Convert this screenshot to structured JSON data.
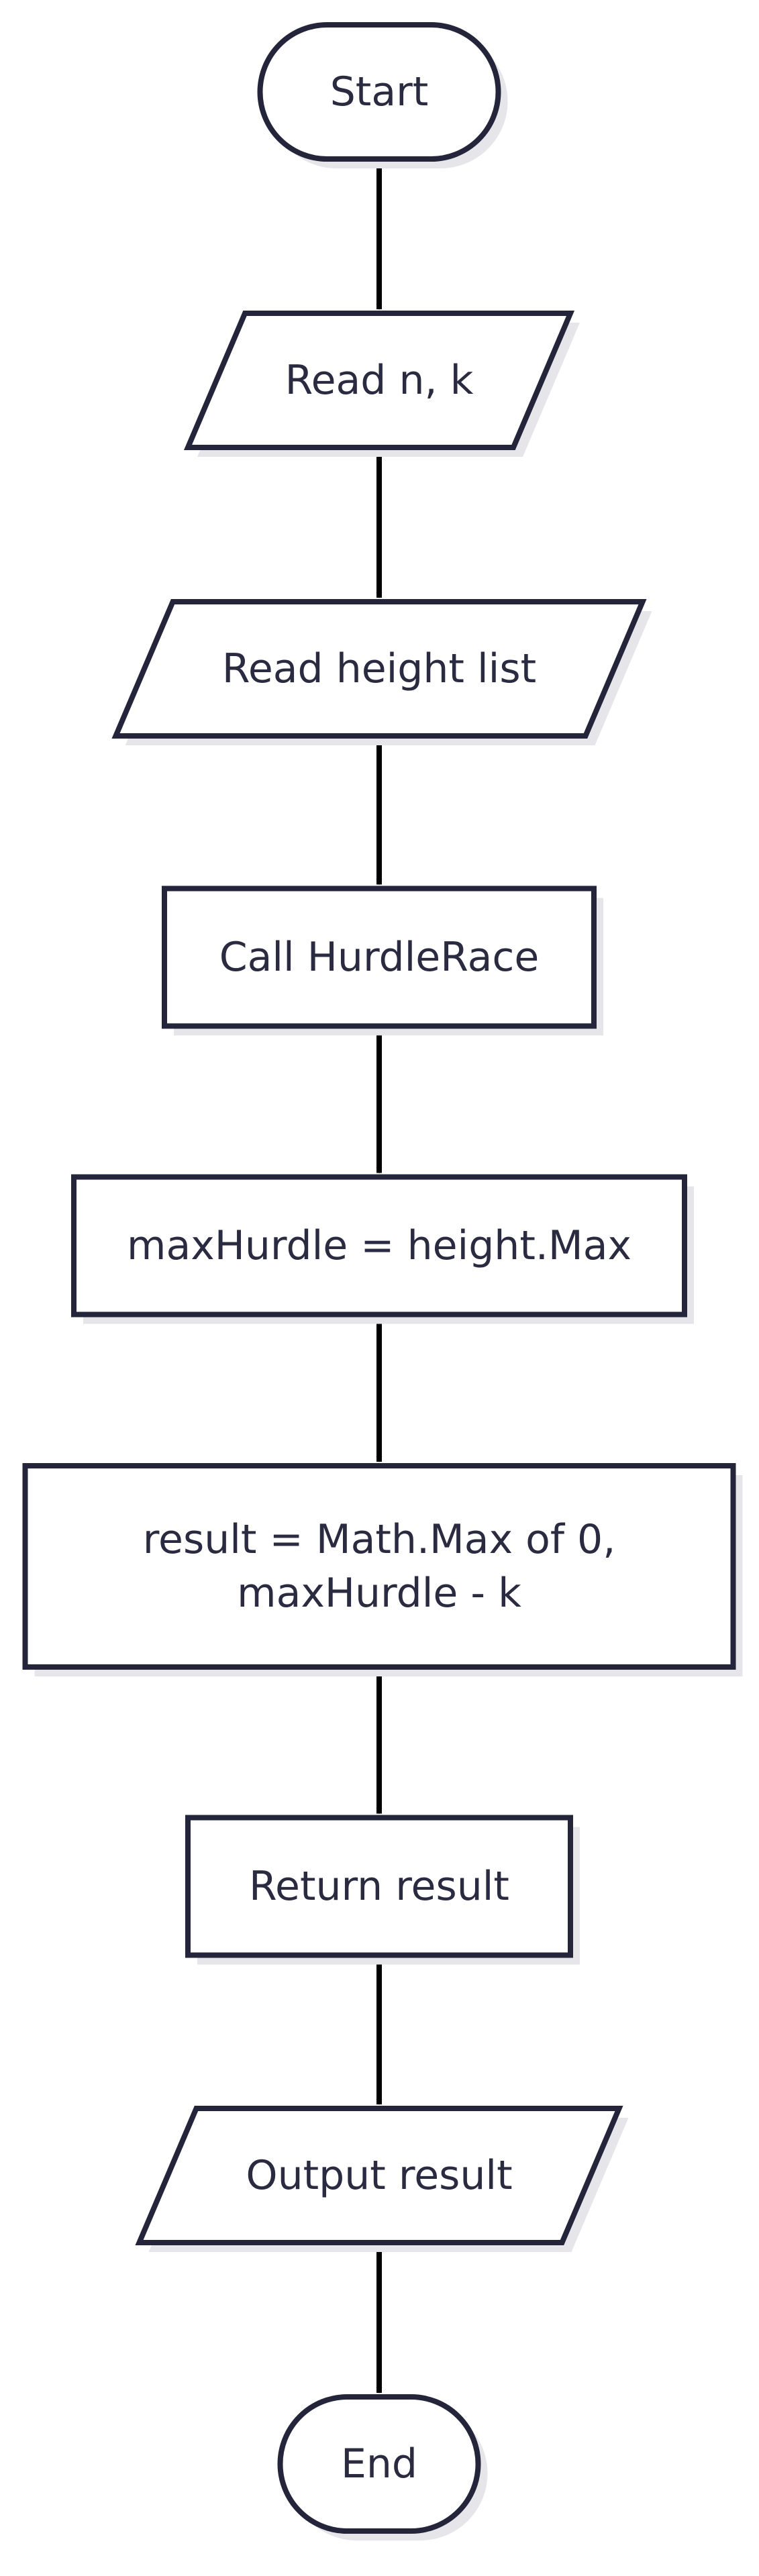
{
  "diagram": {
    "type": "flowchart",
    "colors": {
      "stroke": "#24243a",
      "text": "#2a2a40",
      "fill": "#ffffff",
      "shadow": "#e6e6ea",
      "arrow": "#000000"
    },
    "nodes": [
      {
        "id": "start",
        "shape": "terminal",
        "lines": [
          "Start"
        ]
      },
      {
        "id": "read-n-k",
        "shape": "io",
        "lines": [
          "Read n, k"
        ]
      },
      {
        "id": "read-heights",
        "shape": "io",
        "lines": [
          "Read height list"
        ]
      },
      {
        "id": "call-hurdlerace",
        "shape": "process",
        "lines": [
          "Call HurdleRace"
        ]
      },
      {
        "id": "max-hurdle",
        "shape": "process",
        "lines": [
          "maxHurdle = height.Max"
        ]
      },
      {
        "id": "compute-result",
        "shape": "process",
        "lines": [
          "result = Math.Max of 0,",
          "maxHurdle - k"
        ]
      },
      {
        "id": "return-result",
        "shape": "process",
        "lines": [
          "Return result"
        ]
      },
      {
        "id": "output-result",
        "shape": "io",
        "lines": [
          "Output result"
        ]
      },
      {
        "id": "end",
        "shape": "terminal",
        "lines": [
          "End"
        ]
      }
    ],
    "edges": [
      {
        "from": "start",
        "to": "read-n-k"
      },
      {
        "from": "read-n-k",
        "to": "read-heights"
      },
      {
        "from": "read-heights",
        "to": "call-hurdlerace"
      },
      {
        "from": "call-hurdlerace",
        "to": "max-hurdle"
      },
      {
        "from": "max-hurdle",
        "to": "compute-result"
      },
      {
        "from": "compute-result",
        "to": "return-result"
      },
      {
        "from": "return-result",
        "to": "output-result"
      },
      {
        "from": "output-result",
        "to": "end"
      }
    ]
  }
}
